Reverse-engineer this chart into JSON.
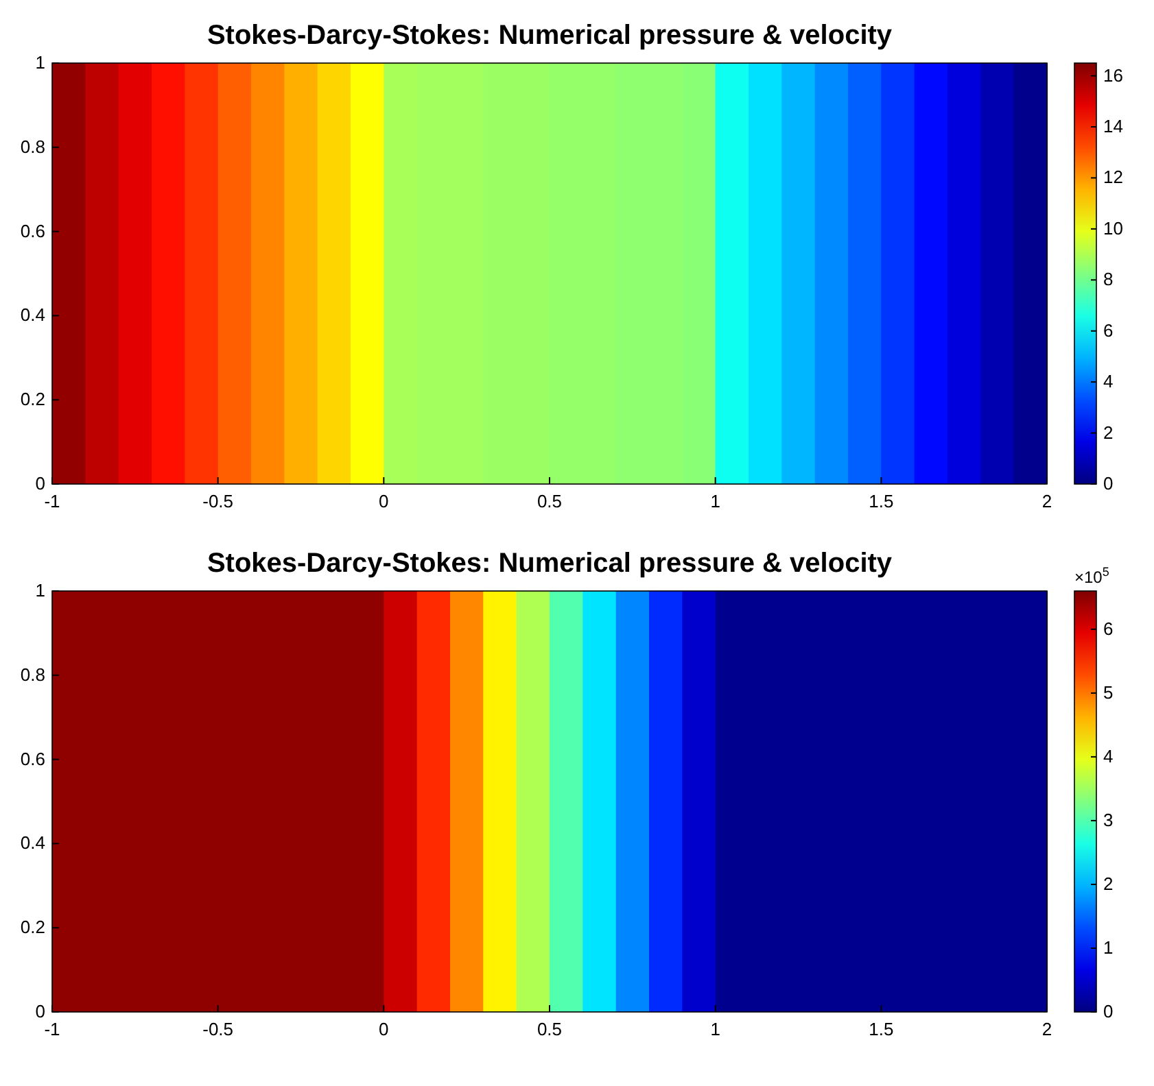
{
  "chart_data": [
    {
      "type": "heatmap",
      "title": "Stokes-Darcy-Stokes: Numerical pressure & velocity",
      "xlim": [
        -1,
        2
      ],
      "xticks": [
        -1,
        -0.5,
        0,
        0.5,
        1,
        1.5,
        2
      ],
      "ylim": [
        0,
        1
      ],
      "yticks": [
        0,
        0.2,
        0.4,
        0.6,
        0.8,
        1
      ],
      "clim": [
        0,
        16.5
      ],
      "cticks": [
        0,
        2,
        4,
        6,
        8,
        10,
        12,
        14,
        16
      ],
      "cells": [
        [
          16.2,
          15.5,
          14.9,
          14.2,
          13.6,
          12.9,
          12.3,
          11.6,
          11.0,
          10.3,
          8.9,
          8.8,
          8.8,
          8.7,
          8.7,
          8.6,
          8.6,
          8.5,
          8.5,
          8.4,
          6.4,
          5.7,
          5.0,
          4.3,
          3.6,
          2.9,
          2.2,
          1.5,
          0.8,
          0.2
        ]
      ]
    },
    {
      "type": "heatmap",
      "title": "Stokes-Darcy-Stokes: Numerical pressure & velocity",
      "clabel": "×10$^{5}$",
      "xlim": [
        -1,
        2
      ],
      "xticks": [
        -1,
        -0.5,
        0,
        0.5,
        1,
        1.5,
        2
      ],
      "ylim": [
        0,
        1
      ],
      "yticks": [
        0,
        0.2,
        0.4,
        0.6,
        0.8,
        1
      ],
      "clim": [
        0,
        6.6
      ],
      "cticks": [
        0,
        1,
        2,
        3,
        4,
        5,
        6
      ],
      "cells": [
        [
          6.5,
          6.5,
          6.5,
          6.5,
          6.5,
          6.5,
          6.5,
          6.5,
          6.5,
          6.5,
          6.1,
          5.5,
          4.9,
          4.2,
          3.6,
          3.0,
          2.3,
          1.7,
          1.1,
          0.5,
          0.1,
          0.1,
          0.1,
          0.1,
          0.1,
          0.1,
          0.1,
          0.1,
          0.1,
          0.1
        ]
      ]
    }
  ]
}
